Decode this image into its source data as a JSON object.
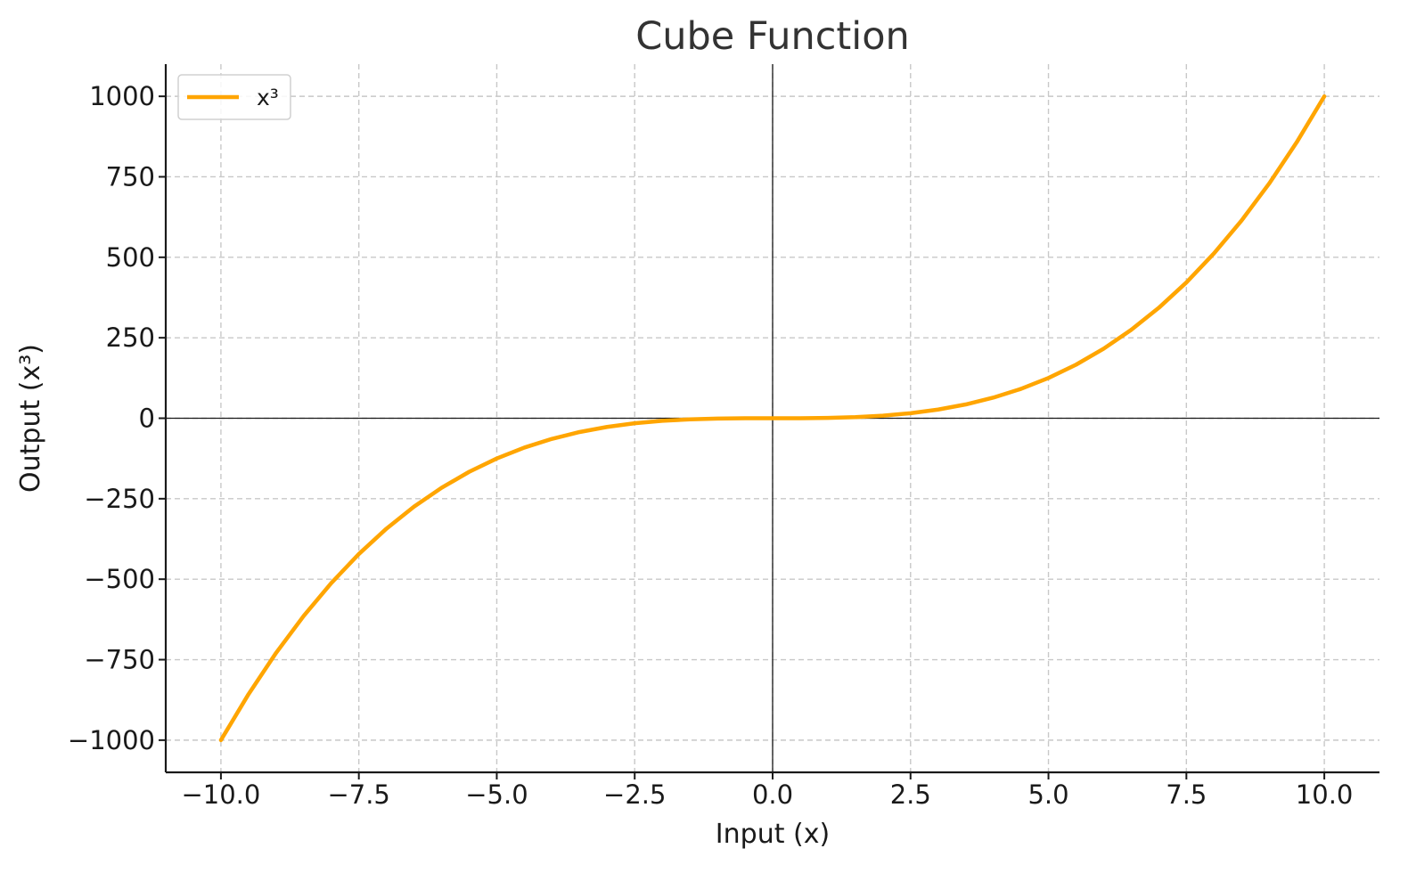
{
  "chart_data": {
    "type": "line",
    "title": "Cube Function",
    "xlabel": "Input (x)",
    "ylabel": "Output (x³)",
    "xlim": [
      -11,
      11
    ],
    "ylim": [
      -1100,
      1100
    ],
    "xticks": [
      -10.0,
      -7.5,
      -5.0,
      -2.5,
      0.0,
      2.5,
      5.0,
      7.5,
      10.0
    ],
    "xtick_labels": [
      "−10.0",
      "−7.5",
      "−5.0",
      "−2.5",
      "0.0",
      "2.5",
      "5.0",
      "7.5",
      "10.0"
    ],
    "yticks": [
      -1000,
      -750,
      -500,
      -250,
      0,
      250,
      500,
      750,
      1000
    ],
    "ytick_labels": [
      "−1000",
      "−750",
      "−500",
      "−250",
      "0",
      "250",
      "500",
      "750",
      "1000"
    ],
    "grid": true,
    "legend": "top-left",
    "series": [
      {
        "name": "x³",
        "color": "#FFA500",
        "x": [
          -10,
          -9.5,
          -9,
          -8.5,
          -8,
          -7.5,
          -7,
          -6.5,
          -6,
          -5.5,
          -5,
          -4.5,
          -4,
          -3.5,
          -3,
          -2.5,
          -2,
          -1.5,
          -1,
          -0.5,
          0,
          0.5,
          1,
          1.5,
          2,
          2.5,
          3,
          3.5,
          4,
          4.5,
          5,
          5.5,
          6,
          6.5,
          7,
          7.5,
          8,
          8.5,
          9,
          9.5,
          10
        ],
        "y": [
          -1000,
          -857.375,
          -729,
          -614.125,
          -512,
          -421.875,
          -343,
          -274.625,
          -216,
          -166.375,
          -125,
          -91.125,
          -64,
          -42.875,
          -27,
          -15.625,
          -8,
          -3.375,
          -1,
          -0.125,
          0,
          0.125,
          1,
          3.375,
          8,
          15.625,
          27,
          42.875,
          64,
          91.125,
          125,
          166.375,
          216,
          274.625,
          343,
          421.875,
          512,
          614.125,
          729,
          857.375,
          1000
        ]
      }
    ]
  }
}
